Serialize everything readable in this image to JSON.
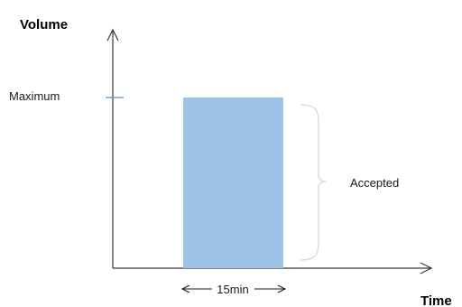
{
  "y_axis": {
    "title": "Volume"
  },
  "x_axis": {
    "title": "Time"
  },
  "maximum_label": "Maximum",
  "accepted_label": "Accepted",
  "duration_label": "15min",
  "colors": {
    "bar": "#9dc3e6",
    "marker": "#5b8fc7",
    "brace": "#d9d9d9",
    "axis": "#3a3a3a"
  }
}
